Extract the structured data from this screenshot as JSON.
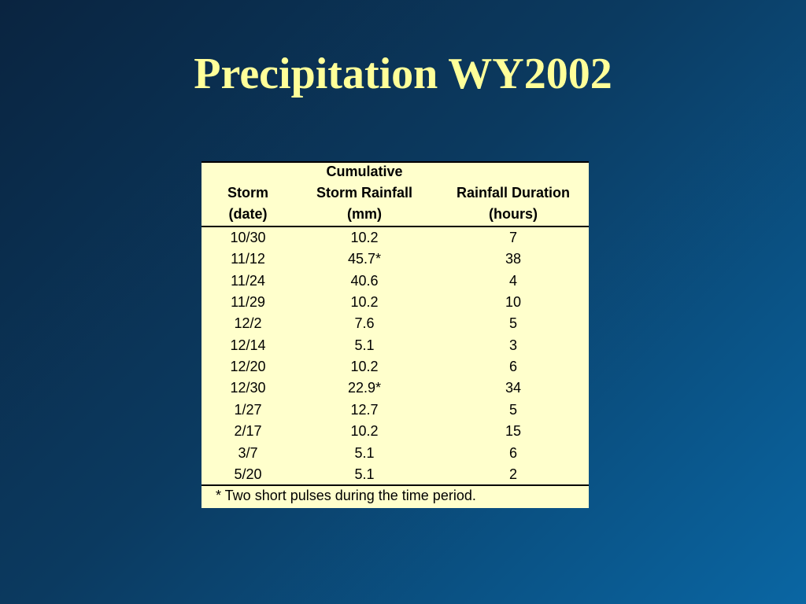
{
  "title": "Precipitation WY2002",
  "table": {
    "columns": [
      {
        "lines": [
          "Storm",
          "(date)"
        ]
      },
      {
        "lines": [
          "Cumulative",
          "Storm Rainfall",
          "(mm)"
        ]
      },
      {
        "lines": [
          "Rainfall Duration",
          "(hours)"
        ]
      }
    ],
    "rows": [
      [
        "10/30",
        "10.2",
        "7"
      ],
      [
        "11/12",
        "45.7*",
        "38"
      ],
      [
        "11/24",
        "40.6",
        "4"
      ],
      [
        "11/29",
        "10.2",
        "10"
      ],
      [
        "12/2",
        "7.6",
        "5"
      ],
      [
        "12/14",
        "5.1",
        "3"
      ],
      [
        "12/20",
        "10.2",
        "6"
      ],
      [
        "12/30",
        "22.9*",
        "34"
      ],
      [
        "1/27",
        "12.7",
        "5"
      ],
      [
        "2/17",
        "10.2",
        "15"
      ],
      [
        "3/7",
        "5.1",
        "6"
      ],
      [
        "5/20",
        "5.1",
        "2"
      ]
    ],
    "footnote": "* Two short pulses during the time period."
  }
}
